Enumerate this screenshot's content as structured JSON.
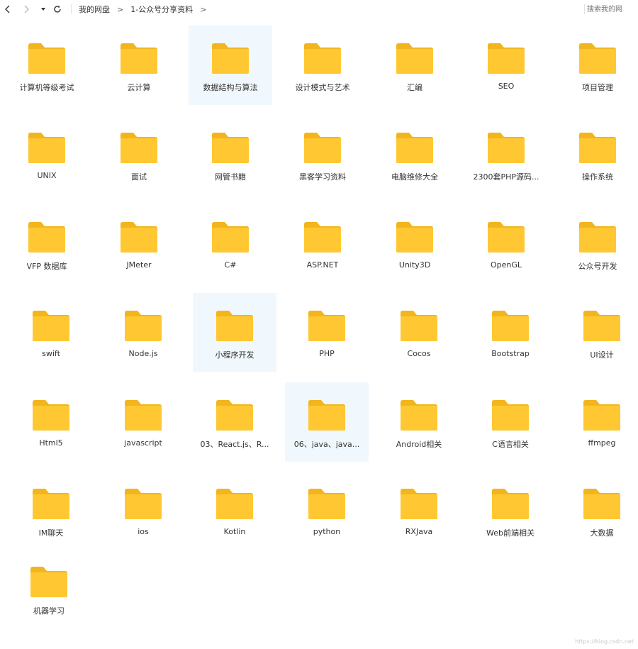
{
  "breadcrumb": {
    "root": "我的网盘",
    "current": "1-公众号分享资料",
    "separator": ">"
  },
  "search": {
    "placeholder": "搜索我的网"
  },
  "folders": [
    [
      "计算机等级考试",
      "云计算",
      "数据结构与算法",
      "设计模式与艺术",
      "汇编",
      "SEO",
      "项目管理"
    ],
    [
      "UNIX",
      "面试",
      "网管书籍",
      "黑客学习资料",
      "电脑维修大全",
      "2300套PHP源码...",
      "操作系统"
    ],
    [
      "VFP 数据库",
      "JMeter",
      "C#",
      "ASP.NET",
      "Unity3D",
      "OpenGL",
      "公众号开发"
    ],
    [
      "swift",
      "Node.js",
      "小程序开发",
      "PHP",
      "Cocos",
      "Bootstrap",
      "UI设计"
    ],
    [
      "Html5",
      "javascript",
      "03、React.js、R...",
      "06、java、java...",
      "Android相关",
      "C语言相关",
      "ffmpeg"
    ],
    [
      "IM聊天",
      "ios",
      "Kotlin",
      "python",
      "RXJava",
      "Web前端相关",
      "大数据"
    ],
    [
      "机器学习"
    ]
  ],
  "selected": [
    "数据结构与算法",
    "小程序开发",
    "06、java、java..."
  ],
  "watermark": "https://blog.csdn.net",
  "colors": {
    "folder_body": "#FFC832",
    "folder_tab": "#F2B51E",
    "selected_bg": "#f0f8fd"
  }
}
